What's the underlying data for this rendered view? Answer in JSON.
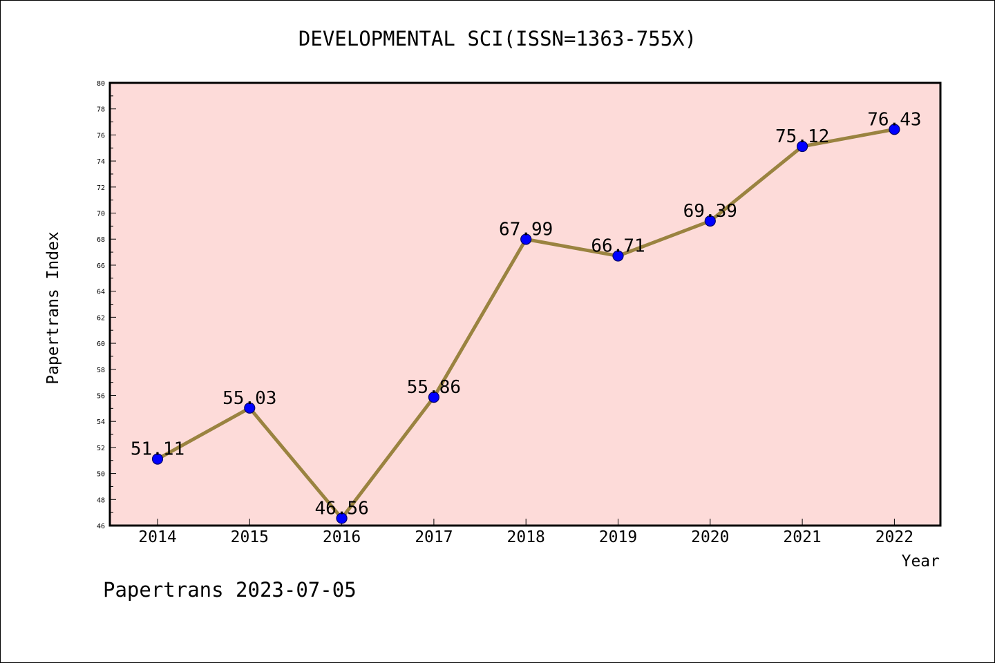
{
  "chart_data": {
    "type": "line",
    "title": "DEVELOPMENTAL SCI(ISSN=1363-755X)",
    "xlabel": "Year",
    "ylabel": "Papertrans Index",
    "categories": [
      "2014",
      "2015",
      "2016",
      "2017",
      "2018",
      "2019",
      "2020",
      "2021",
      "2022"
    ],
    "values": [
      51.11,
      55.03,
      46.56,
      55.86,
      67.99,
      66.71,
      69.39,
      75.12,
      76.43
    ],
    "data_labels": [
      "51.11",
      "55.03",
      "46.56",
      "55.86",
      "67.99",
      "66.71",
      "69.39",
      "75.12",
      "76.43"
    ],
    "ylim": [
      46,
      80
    ],
    "yticks": [
      46,
      48,
      50,
      52,
      54,
      56,
      58,
      60,
      62,
      64,
      66,
      68,
      70,
      72,
      74,
      76,
      78,
      80
    ],
    "grid": false,
    "colors": {
      "plot_background": "#fddbd9",
      "line": "#9a8340",
      "marker": "#0000ff",
      "marker_edge": "#000066"
    }
  },
  "footer": "Papertrans 2023-07-05"
}
